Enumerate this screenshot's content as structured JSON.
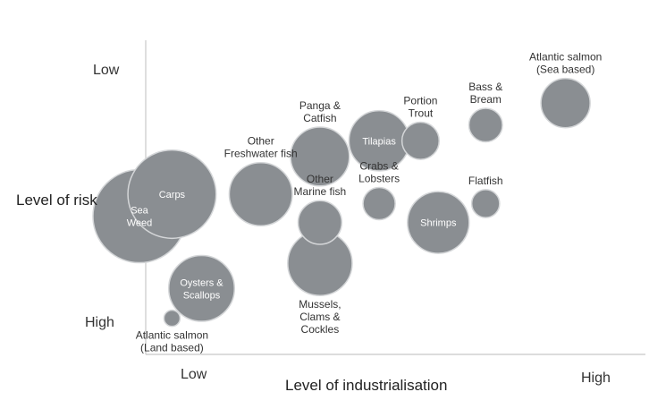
{
  "chart_data": {
    "type": "scatter",
    "subtype": "bubble",
    "xlabel": "Level of industrialisation",
    "ylabel": "Level of risk",
    "x_tick_labels": {
      "low": "Low",
      "high": "High"
    },
    "y_tick_labels": {
      "top": "Low",
      "bottom": "High"
    },
    "xlim": [
      0,
      100
    ],
    "ylim": [
      0,
      100
    ],
    "bubble_color": "#8a8e92",
    "bubble_edge": "#d4d6d8",
    "points": [
      {
        "id": "seaweed",
        "lines": [
          "Sea",
          "Weed"
        ],
        "x": 14.5,
        "y": 44,
        "size": 100,
        "label_pos": "inside",
        "label_color": "#ffffff"
      },
      {
        "id": "carps",
        "lines": [
          "Carps"
        ],
        "x": 20,
        "y": 51,
        "size": 90,
        "label_pos": "inside",
        "label_color": "#ffffff"
      },
      {
        "id": "oysters",
        "lines": [
          "Oysters &",
          "Scallops"
        ],
        "x": 25,
        "y": 21,
        "size": 50,
        "label_pos": "inside",
        "label_color": "#ffffff"
      },
      {
        "id": "atlantic-salmon-land",
        "lines": [
          "Atlantic salmon",
          "(Land based)"
        ],
        "x": 20,
        "y": 11.5,
        "size": 3,
        "label_pos": "below",
        "label_color": "#333333"
      },
      {
        "id": "other-freshwater",
        "lines": [
          "Other",
          "Freshwater fish"
        ],
        "x": 35,
        "y": 51,
        "size": 46,
        "label_pos": "above",
        "label_color": "#333333"
      },
      {
        "id": "panga",
        "lines": [
          "Panga &",
          "Catfish"
        ],
        "x": 45,
        "y": 63,
        "size": 40,
        "label_pos": "above",
        "label_color": "#333333"
      },
      {
        "id": "tilapias",
        "lines": [
          "Tilapias"
        ],
        "x": 55,
        "y": 68,
        "size": 42,
        "label_pos": "inside",
        "label_color": "#ffffff"
      },
      {
        "id": "portion-trout",
        "lines": [
          "Portion",
          "Trout"
        ],
        "x": 62,
        "y": 68,
        "size": 16,
        "label_pos": "above",
        "label_color": "#333333"
      },
      {
        "id": "bass-bream",
        "lines": [
          "Bass &",
          "Bream"
        ],
        "x": 73,
        "y": 73,
        "size": 13,
        "label_pos": "above",
        "label_color": "#333333"
      },
      {
        "id": "atlantic-salmon-sea",
        "lines": [
          "Atlantic salmon",
          "(Sea based)"
        ],
        "x": 86.5,
        "y": 80,
        "size": 28,
        "label_pos": "above",
        "label_color": "#333333"
      },
      {
        "id": "other-marine",
        "lines": [
          "Other",
          "Marine fish"
        ],
        "x": 45,
        "y": 42,
        "size": 22,
        "label_pos": "above",
        "label_color": "#333333"
      },
      {
        "id": "crabs-lobsters",
        "lines": [
          "Crabs &",
          "Lobsters"
        ],
        "x": 55,
        "y": 48,
        "size": 12,
        "label_pos": "above",
        "label_color": "#333333"
      },
      {
        "id": "flatfish",
        "lines": [
          "Flatfish"
        ],
        "x": 73,
        "y": 48,
        "size": 9,
        "label_pos": "above",
        "label_color": "#333333"
      },
      {
        "id": "shrimps",
        "lines": [
          "Shrimps"
        ],
        "x": 65,
        "y": 42,
        "size": 44,
        "label_pos": "inside",
        "label_color": "#ffffff"
      },
      {
        "id": "mussels",
        "lines": [
          "Mussels,",
          "Clams &",
          "Cockles"
        ],
        "x": 45,
        "y": 29,
        "size": 48,
        "label_pos": "below",
        "label_color": "#333333"
      }
    ]
  }
}
